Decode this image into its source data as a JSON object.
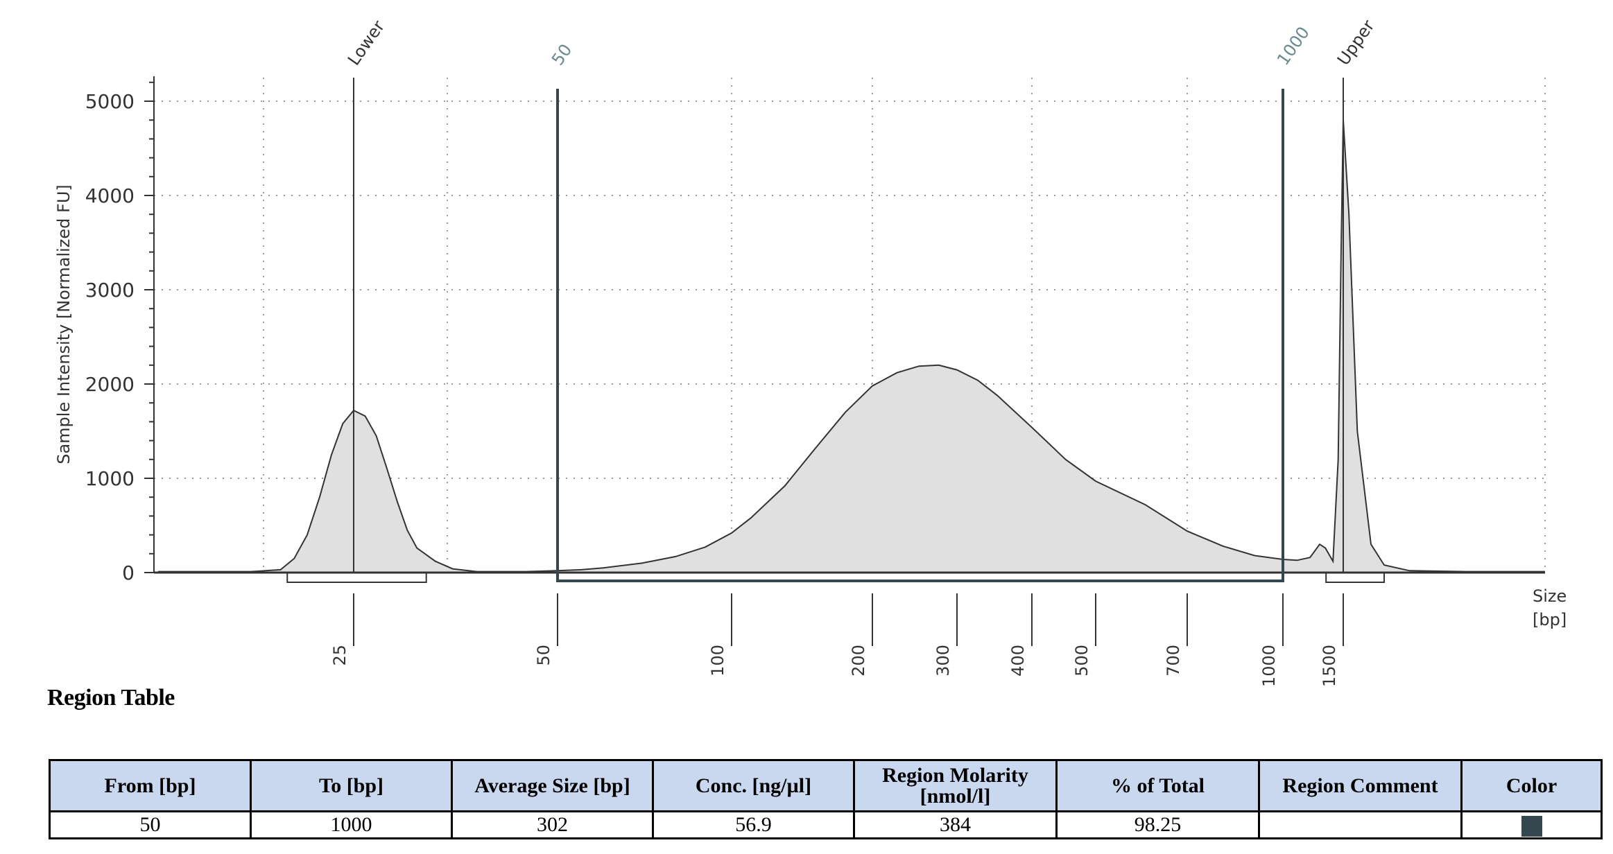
{
  "chart_data": {
    "type": "line",
    "ylabel": "Sample Intensity [Normalized FU]",
    "xlabel": "Size\n[bp]",
    "ylim": [
      0,
      5000
    ],
    "yticks": [
      0,
      1000,
      2000,
      3000,
      4000,
      5000
    ],
    "xticks": [
      "25",
      "50",
      "100",
      "200",
      "300",
      "400",
      "500",
      "700",
      "1000",
      "1500"
    ],
    "grid": true,
    "fill_color": "#e0e0e0",
    "line_color": "#333333",
    "region_color": "#35474f",
    "markers": [
      {
        "label": "Lower",
        "size_bp": 25,
        "height": 5200,
        "color": "#333333"
      },
      {
        "label": "Upper",
        "size_bp": 1500,
        "height": 5200,
        "color": "#333333"
      }
    ],
    "region_markers": [
      {
        "label": "50",
        "size_bp": 50,
        "color": "#6b8a8e"
      },
      {
        "label": "1000",
        "size_bp": 1000,
        "color": "#6b8a8e"
      }
    ],
    "peak_brackets": [
      {
        "from_bp": 20,
        "to_bp": 32
      },
      {
        "from_bp": 1400,
        "to_bp": 1650
      }
    ],
    "series": [
      {
        "points": [
          [
            12,
            10
          ],
          [
            15,
            10
          ],
          [
            17,
            10
          ],
          [
            19,
            30
          ],
          [
            20,
            150
          ],
          [
            21,
            400
          ],
          [
            22,
            800
          ],
          [
            23,
            1250
          ],
          [
            24,
            1580
          ],
          [
            25,
            1720
          ],
          [
            26,
            1660
          ],
          [
            27,
            1450
          ],
          [
            28,
            1100
          ],
          [
            29,
            750
          ],
          [
            30,
            450
          ],
          [
            31,
            260
          ],
          [
            33,
            120
          ],
          [
            35,
            40
          ],
          [
            38,
            10
          ],
          [
            45,
            10
          ],
          [
            50,
            20
          ],
          [
            55,
            30
          ],
          [
            60,
            50
          ],
          [
            70,
            100
          ],
          [
            80,
            170
          ],
          [
            90,
            270
          ],
          [
            100,
            420
          ],
          [
            110,
            580
          ],
          [
            130,
            920
          ],
          [
            150,
            1300
          ],
          [
            175,
            1700
          ],
          [
            200,
            1980
          ],
          [
            225,
            2120
          ],
          [
            250,
            2190
          ],
          [
            275,
            2200
          ],
          [
            300,
            2150
          ],
          [
            325,
            2040
          ],
          [
            350,
            1880
          ],
          [
            400,
            1540
          ],
          [
            450,
            1200
          ],
          [
            500,
            970
          ],
          [
            600,
            720
          ],
          [
            700,
            440
          ],
          [
            800,
            280
          ],
          [
            900,
            180
          ],
          [
            1000,
            140
          ],
          [
            1100,
            130
          ],
          [
            1200,
            160
          ],
          [
            1280,
            300
          ],
          [
            1330,
            260
          ],
          [
            1400,
            120
          ],
          [
            1450,
            1200
          ],
          [
            1480,
            3500
          ],
          [
            1500,
            4800
          ],
          [
            1520,
            3800
          ],
          [
            1550,
            1500
          ],
          [
            1600,
            300
          ],
          [
            1650,
            80
          ],
          [
            1750,
            20
          ],
          [
            2000,
            10
          ],
          [
            2400,
            10
          ]
        ]
      }
    ]
  },
  "region_table": {
    "title": "Region Table",
    "headers": [
      "From [bp]",
      "To [bp]",
      "Average Size [bp]",
      "Conc. [ng/µl]",
      "Region Molarity\n[nmol/l]",
      "% of Total",
      "Region Comment",
      "Color"
    ],
    "rows": [
      {
        "from": "50",
        "to": "1000",
        "avg_size": "302",
        "conc": "56.9",
        "molarity": "384",
        "percent": "98.25",
        "comment": "",
        "color": "#35474f"
      }
    ]
  }
}
